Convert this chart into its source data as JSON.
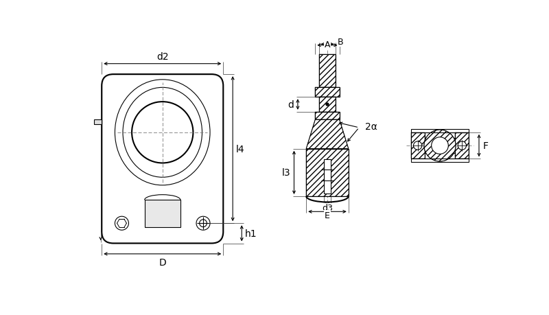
{
  "bg_color": "#ffffff",
  "line_color": "#000000",
  "thin_lw": 0.8,
  "thick_lw": 1.5,
  "fig_w": 8.0,
  "fig_h": 4.6,
  "dpi": 100,
  "labels": {
    "d2": "d2",
    "D": "D",
    "h1": "h1",
    "l4": "l4",
    "B": "B",
    "A": "A",
    "d": "d",
    "l3": "l3",
    "d3": "d3",
    "E": "E",
    "two_alpha": "2α",
    "F": "F"
  }
}
